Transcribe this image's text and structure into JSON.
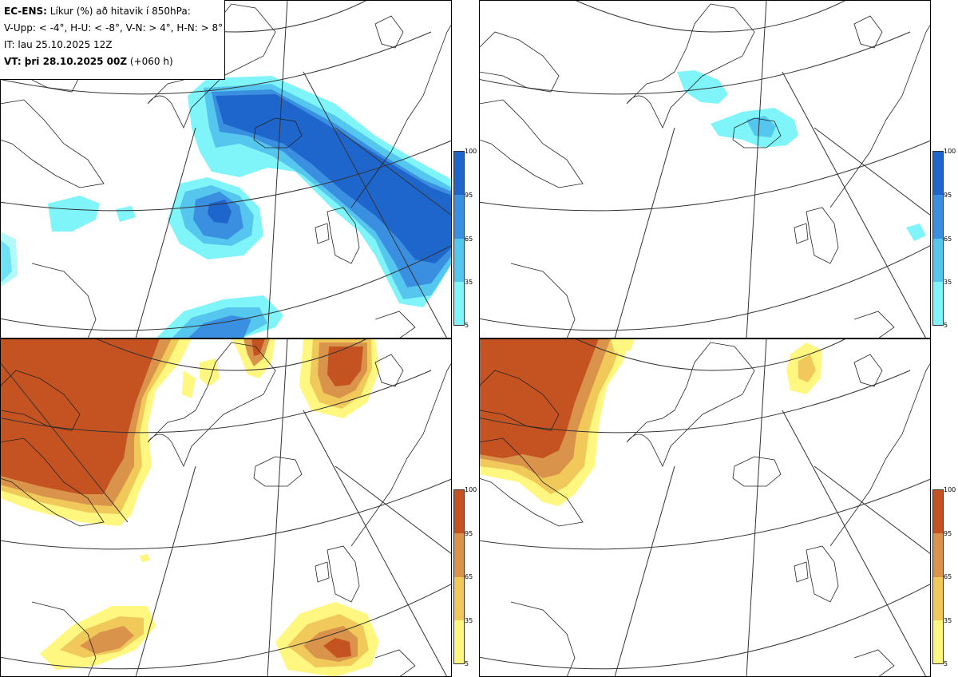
{
  "header": {
    "line1_bold": "EC-ENS:",
    "line1_rest": " Líkur (%) að hitavik í 850hPa:",
    "line2": "V-Upp: < -4°, H-U: < -8°, V-N: > 4°, H-N: > 8°",
    "line3": "IT: lau 25.10.2025 12Z",
    "line4_bold": "VT: þri 28.10.2025 00Z",
    "line4_rest": " (+060 h)"
  },
  "colorbar_ticks": [
    "100",
    "95",
    "65",
    "35",
    "5"
  ],
  "colors": {
    "cold_5": "#7ff5fa",
    "cold_35": "#55c6ee",
    "cold_65": "#3b8fe0",
    "cold_95": "#1f66cc",
    "warm_5": "#fff780",
    "warm_35": "#f0c95a",
    "warm_65": "#d9934a",
    "warm_95": "#c55322",
    "coast": "#222222",
    "graticule": "#333333"
  },
  "panels": [
    {
      "id": "cold-moderate",
      "threshold": "< -4°"
    },
    {
      "id": "cold-strong",
      "threshold": "< -8°"
    },
    {
      "id": "warm-moderate",
      "threshold": "> 4°"
    },
    {
      "id": "warm-strong",
      "threshold": "> 8°"
    }
  ]
}
